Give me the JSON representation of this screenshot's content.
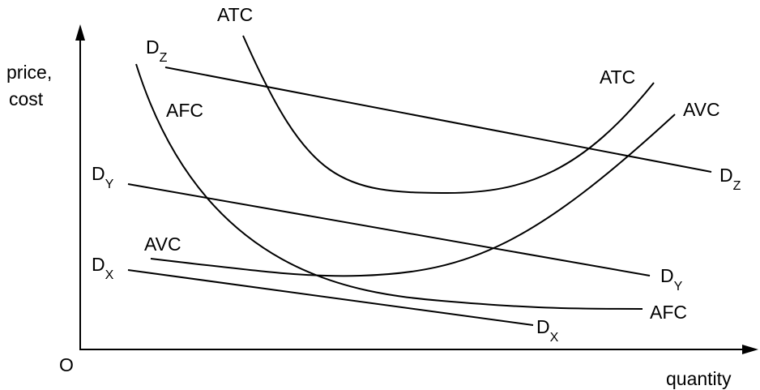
{
  "axes": {
    "y_label_line1": "price,",
    "y_label_line2": "cost",
    "x_label": "quantity",
    "origin": "O"
  },
  "curves": {
    "ATC": "ATC",
    "AVC": "AVC",
    "AFC": "AFC"
  },
  "demand": {
    "D": "D",
    "Z": "Z",
    "Y": "Y",
    "X": "X"
  }
}
